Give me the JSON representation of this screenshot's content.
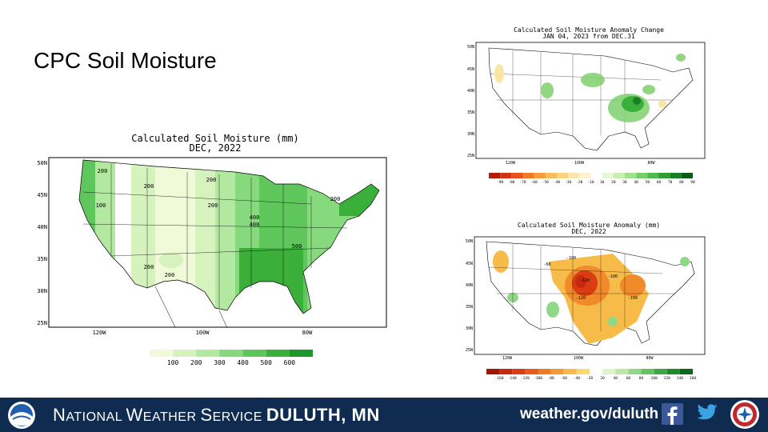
{
  "slide": {
    "title": "CPC Soil Moisture"
  },
  "footer": {
    "org_first": "N",
    "org_rest1": "ATIONAL ",
    "org_w": "W",
    "org_rest2": "EATHER ",
    "org_s": "S",
    "org_rest3": "ERVICE ",
    "office": "DULUTH, MN",
    "url": "weather.gov/duluth",
    "colors": {
      "bar": "#0f2b4f"
    }
  },
  "maps": {
    "main": {
      "title": "Calculated Soil Moisture (mm)",
      "subtitle": "DEC, 2022",
      "lat_labels": [
        "50N",
        "45N",
        "40N",
        "35N",
        "30N",
        "25N"
      ],
      "lon_labels": [
        "120W",
        "100W",
        "80W"
      ],
      "contour_labels": [
        "200",
        "200",
        "100",
        "200",
        "200",
        "400",
        "400",
        "500",
        "200",
        "200",
        "200"
      ],
      "legend": [
        "100",
        "200",
        "300",
        "400",
        "500",
        "600"
      ],
      "legend_colors": [
        "#f0fad8",
        "#d6f3bd",
        "#b2e8a0",
        "#86d97d",
        "#5ec65b",
        "#3aaf3a",
        "#1e962a"
      ]
    },
    "change": {
      "title": "Calculated Soil Moisture Anomaly Change",
      "subtitle": "JAN 04, 2023 from DEC.31",
      "lat_labels": [
        "50N",
        "45N",
        "40N",
        "35N",
        "30N",
        "25N"
      ],
      "lon_labels": [
        "120W",
        "100W",
        "80W"
      ],
      "legend": [
        "-90",
        "-80",
        "-70",
        "-60",
        "-50",
        "-40",
        "-30",
        "-20",
        "-10",
        "10",
        "20",
        "30",
        "40",
        "50",
        "60",
        "70",
        "80",
        "90"
      ],
      "legend_colors": [
        "#b01e0a",
        "#d43214",
        "#e8501e",
        "#f07a28",
        "#f59c3c",
        "#f7bb5a",
        "#f9d37e",
        "#fbe5a8",
        "#fdf3d2",
        "#ffffff",
        "#e6f7d6",
        "#c7eeb2",
        "#9fe08d",
        "#75cf6b",
        "#4fba4d",
        "#309e33",
        "#1a7f24",
        "#0b5c16"
      ]
    },
    "anomaly": {
      "title": "Calculated Soil Moisture Anomaly (mm)",
      "subtitle": "DEC, 2022",
      "lat_labels": [
        "50N",
        "45N",
        "40N",
        "35N",
        "30N",
        "25N"
      ],
      "lon_labels": [
        "120W",
        "100W",
        "80W"
      ],
      "contour_labels": [
        "-100",
        "-120",
        "-100",
        "-120",
        "-100",
        "-60"
      ],
      "legend": [
        "-160",
        "-140",
        "-120",
        "-100",
        "-80",
        "-60",
        "-40",
        "-20",
        "20",
        "40",
        "60",
        "80",
        "100",
        "120",
        "140",
        "160"
      ],
      "legend_colors": [
        "#a01808",
        "#c8280e",
        "#dc3c12",
        "#e85a1a",
        "#f07a24",
        "#f59a32",
        "#f8bb4a",
        "#fbd870",
        "#ffffff",
        "#dff4cc",
        "#bce9a8",
        "#8fd885",
        "#63c463",
        "#3aa843",
        "#1f8a2c",
        "#0b6a1a"
      ]
    }
  }
}
